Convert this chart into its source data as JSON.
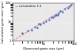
{
  "x_data": [
    2,
    3,
    4,
    5,
    6,
    7,
    8,
    10,
    12,
    15,
    18,
    20,
    22,
    25,
    28,
    30,
    35,
    40,
    50,
    60,
    70,
    80
  ],
  "y_data": [
    2.5,
    3.5,
    3.8,
    5.5,
    5,
    8,
    7,
    9,
    11,
    13,
    17,
    18,
    20,
    22,
    24,
    27,
    38,
    35,
    48,
    55,
    65,
    80
  ],
  "line_color": "#ff6666",
  "dot_color": "#3366cc",
  "xlim": [
    1,
    100
  ],
  "ylim": [
    1,
    100
  ],
  "xlabel": "Observed grain size (μm)",
  "ylabel": "Calculated grain size (μm)",
  "legend_label": "calculation 1:1",
  "dot_size": 3,
  "line_width": 0.6,
  "xlabel_fontsize": 3.0,
  "ylabel_fontsize": 3.0,
  "legend_fontsize": 2.8,
  "tick_fontsize": 2.8,
  "bg_color": "#e8e8e8"
}
